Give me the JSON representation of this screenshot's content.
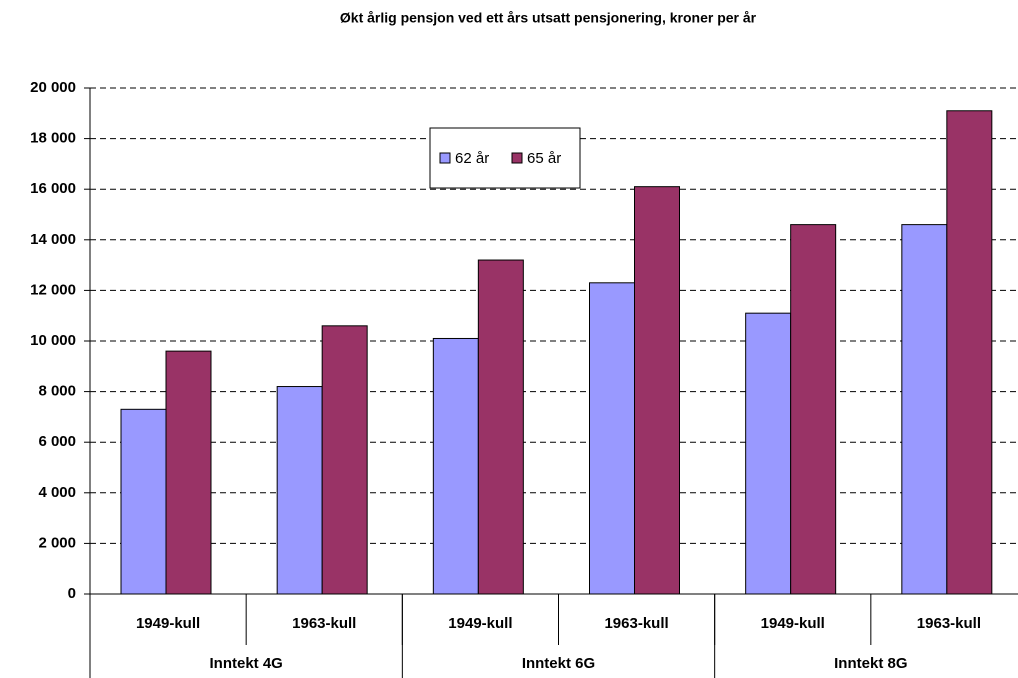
{
  "chart_data": {
    "type": "bar",
    "title": "Økt årlig pensjon ved ett års utsatt pensjonering, kroner per år",
    "categories": [
      "1949-kull",
      "1963-kull",
      "1949-kull",
      "1963-kull",
      "1949-kull",
      "1963-kull"
    ],
    "category_groups": [
      "Inntekt 4G",
      "Inntekt 6G",
      "Inntekt 8G"
    ],
    "series": [
      {
        "name": "62 år",
        "color": "#9999ff",
        "values": [
          7300,
          8200,
          10100,
          12300,
          11100,
          14600
        ]
      },
      {
        "name": "65 år",
        "color": "#993366",
        "values": [
          9600,
          10600,
          13200,
          16100,
          14600,
          19100
        ]
      }
    ],
    "ylim": [
      0,
      20000
    ],
    "yticks": [
      0,
      {
        "value": 2000,
        "label": "2 000"
      },
      {
        "value": 4000,
        "label": "4 000"
      },
      {
        "value": 6000,
        "label": "6 000"
      },
      {
        "value": 8000,
        "label": "8 000"
      },
      {
        "value": 10000,
        "label": "10 000"
      },
      {
        "value": 12000,
        "label": "12 000"
      },
      {
        "value": 14000,
        "label": "14 000"
      },
      {
        "value": 16000,
        "label": "16 000"
      },
      {
        "value": 18000,
        "label": "18 000"
      },
      {
        "value": 20000,
        "label": "20 000"
      }
    ],
    "grid": true
  }
}
